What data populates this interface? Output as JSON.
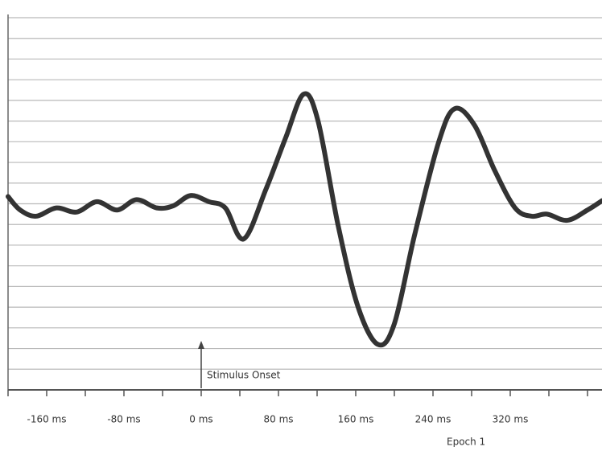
{
  "chart_data": {
    "type": "line",
    "x": [
      -200,
      -187.5,
      -171,
      -150,
      -129,
      -108,
      -87,
      -67,
      -46,
      -29,
      -11,
      8,
      25,
      44,
      67,
      87.5,
      106,
      121,
      142,
      162.5,
      183,
      200,
      221,
      246,
      262.5,
      283,
      304,
      325,
      342,
      358,
      379,
      400,
      415
    ],
    "series": [
      {
        "color": "#333333",
        "values": [
          0.35,
          -0.3,
          -0.6,
          -0.2,
          -0.4,
          0.1,
          -0.3,
          0.2,
          -0.2,
          -0.1,
          0.4,
          0.1,
          -0.2,
          -1.7,
          0.7,
          3.2,
          5.3,
          4.0,
          -1.1,
          -5.0,
          -6.8,
          -5.8,
          -1.5,
          3.0,
          4.6,
          3.8,
          1.6,
          -0.2,
          -0.6,
          -0.5,
          -0.8,
          -0.3,
          0.15
        ]
      }
    ],
    "xlim": [
      -200,
      415
    ],
    "xticks": [
      {
        "value": -160,
        "label": "-160 ms"
      },
      {
        "value": -80,
        "label": "-80 ms"
      },
      {
        "value": 0,
        "label": "0 ms"
      },
      {
        "value": 80,
        "label": "80 ms"
      },
      {
        "value": 160,
        "label": "160 ms"
      },
      {
        "value": 240,
        "label": "240 ms"
      },
      {
        "value": 320,
        "label": "320 ms"
      }
    ],
    "minor_xticks": [
      -200,
      -120,
      -40,
      40,
      120,
      200,
      280,
      360,
      400
    ],
    "ylim": [
      -9,
      9
    ],
    "yticks": [
      -9,
      -8,
      -7,
      -6,
      -5,
      -4,
      -3,
      -2,
      -1,
      0,
      1,
      2,
      3,
      4,
      5,
      6,
      7,
      8,
      9
    ],
    "grid": true,
    "annotations": [
      {
        "text": "Stimulus Onset",
        "x": 0
      }
    ],
    "xlabel": "Epoch 1"
  }
}
